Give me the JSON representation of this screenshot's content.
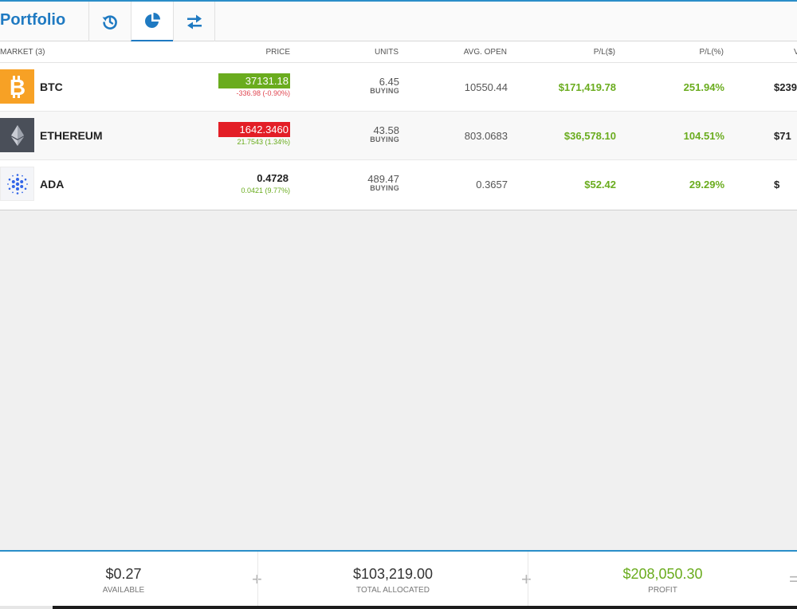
{
  "header": {
    "title": "Portfolio",
    "tabs": [
      {
        "name": "history",
        "icon": "history-icon"
      },
      {
        "name": "allocation",
        "icon": "pie-chart-icon",
        "active": true
      },
      {
        "name": "transfer",
        "icon": "swap-arrows-icon"
      }
    ]
  },
  "table": {
    "columns": {
      "market": "MARKET (3)",
      "price": "PRICE",
      "units": "UNITS",
      "avg_open": "AVG. OPEN",
      "pl_usd": "P/L($)",
      "pl_pct": "P/L(%)",
      "value": "V"
    },
    "rows": [
      {
        "name": "BTC",
        "icon": "bitcoin-icon",
        "price": "37131.18",
        "price_trend": "up",
        "change": "-336.98 (-0.90%)",
        "change_dir": "negative",
        "units": "6.45",
        "direction": "BUYING",
        "avg_open": "10550.44",
        "pl_usd": "$171,419.78",
        "pl_pct": "251.94%",
        "value": "$239"
      },
      {
        "name": "ETHEREUM",
        "icon": "ethereum-icon",
        "price": "1642.3460",
        "price_trend": "down",
        "change": "21.7543 (1.34%)",
        "change_dir": "positive",
        "units": "43.58",
        "direction": "BUYING",
        "avg_open": "803.0683",
        "pl_usd": "$36,578.10",
        "pl_pct": "104.51%",
        "value": "$71"
      },
      {
        "name": "ADA",
        "icon": "cardano-icon",
        "price": "0.4728",
        "price_trend": "none",
        "change": "0.0421 (9.77%)",
        "change_dir": "positive",
        "units": "489.47",
        "direction": "BUYING",
        "avg_open": "0.3657",
        "pl_usd": "$52.42",
        "pl_pct": "29.29%",
        "value": "$"
      }
    ]
  },
  "footer": {
    "available": {
      "amount": "$0.27",
      "label": "AVAILABLE"
    },
    "allocated": {
      "amount": "$103,219.00",
      "label": "TOTAL ALLOCATED"
    },
    "profit": {
      "amount": "$208,050.30",
      "label": "PROFIT"
    },
    "op_plus": "+",
    "op_equals": "="
  },
  "colors": {
    "accent": "#1f7ac2",
    "positive": "#6aac1e",
    "negative": "#e31e26",
    "btc": "#f7a125",
    "eth": "#4a4f59"
  }
}
